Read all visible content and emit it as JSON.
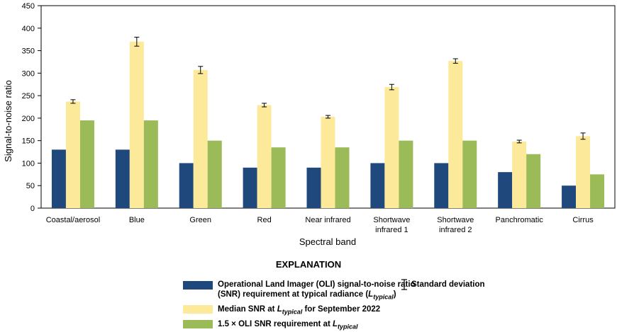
{
  "chart_data": {
    "type": "bar",
    "xlabel": "Spectral band",
    "ylabel": "Signal-to-noise ratio",
    "ylim": [
      0,
      450
    ],
    "yticks": [
      0,
      50,
      100,
      150,
      200,
      250,
      300,
      350,
      400,
      450
    ],
    "grid": false,
    "categories": [
      [
        "Coastal/aerosol"
      ],
      [
        "Blue"
      ],
      [
        "Green"
      ],
      [
        "Red"
      ],
      [
        "Near infrared"
      ],
      [
        "Shortwave",
        "infrared 1"
      ],
      [
        "Shortwave",
        "infrared 2"
      ],
      [
        "Panchromatic"
      ],
      [
        "Cirrus"
      ]
    ],
    "series": [
      {
        "key": "oli_requirement",
        "color": "#1f497d",
        "values": [
          130,
          130,
          100,
          90,
          90,
          100,
          100,
          80,
          50
        ]
      },
      {
        "key": "median_snr",
        "color": "#fde99a",
        "values": [
          237,
          370,
          307,
          229,
          203,
          269,
          327,
          148,
          160
        ],
        "error": [
          4,
          10,
          8,
          4,
          3,
          6,
          5,
          3,
          7
        ]
      },
      {
        "key": "oli_1_5x",
        "color": "#9bbb59",
        "values": [
          195,
          195,
          150,
          135,
          135,
          150,
          150,
          120,
          75
        ]
      }
    ]
  },
  "legend": {
    "title": "EXPLANATION",
    "oli_line1": "Operational Land Imager (OLI) signal-to-noise ratio",
    "oli_line2a": "(SNR) requirement at typical radiance (",
    "oli_line2_L": "L",
    "oli_line2_sub": "typical",
    "oli_line2b": ")",
    "median_a": "Median SNR at ",
    "median_L": "L",
    "median_sub": "typical",
    "median_b": " for September 2022",
    "x15_a": "1.5 × OLI SNR requirement at ",
    "x15_L": "L",
    "x15_sub": "typical",
    "std": "Standard deviation"
  }
}
